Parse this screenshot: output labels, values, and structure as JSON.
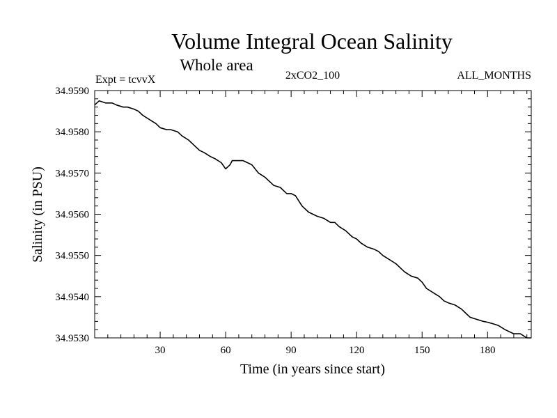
{
  "chart_data": {
    "type": "line",
    "title": "Volume Integral Ocean Salinity",
    "subtitle": "Whole area",
    "annotations": {
      "left": "Expt = tcvvX",
      "center": "2xCO2_100",
      "right": "ALL_MONTHS"
    },
    "xlabel": "Time (in years since start)",
    "ylabel": "Salinity (in PSU)",
    "xlim": [
      0,
      200
    ],
    "ylim": [
      34.953,
      34.959
    ],
    "xticks": [
      30,
      60,
      90,
      120,
      150,
      180
    ],
    "yticks": [
      "34.9530",
      "34.9540",
      "34.9550",
      "34.9560",
      "34.9570",
      "34.9580",
      "34.9590"
    ],
    "grid": false,
    "series": [
      {
        "color": "#000000",
        "x": [
          0,
          2,
          5,
          8,
          10,
          13,
          15,
          18,
          20,
          22,
          25,
          28,
          30,
          33,
          35,
          38,
          40,
          43,
          45,
          48,
          50,
          53,
          55,
          58,
          60,
          62,
          63,
          65,
          68,
          70,
          72,
          75,
          78,
          80,
          82,
          85,
          88,
          90,
          92,
          95,
          98,
          100,
          102,
          105,
          108,
          110,
          112,
          115,
          118,
          120,
          122,
          125,
          128,
          130,
          132,
          135,
          138,
          140,
          142,
          145,
          148,
          150,
          152,
          155,
          158,
          160,
          162,
          165,
          168,
          170,
          172,
          175,
          178,
          180,
          182,
          185,
          188,
          190,
          192,
          195,
          198,
          200
        ],
        "values": [
          34.95865,
          34.95875,
          34.9587,
          34.9587,
          34.95865,
          34.9586,
          34.9586,
          34.95855,
          34.9585,
          34.9584,
          34.9583,
          34.9582,
          34.9581,
          34.95805,
          34.95805,
          34.958,
          34.9579,
          34.9578,
          34.9577,
          34.95755,
          34.9575,
          34.9574,
          34.95735,
          34.95725,
          34.9571,
          34.9572,
          34.9573,
          34.9573,
          34.9573,
          34.95725,
          34.9572,
          34.957,
          34.9569,
          34.9568,
          34.9567,
          34.95665,
          34.9565,
          34.9565,
          34.95645,
          34.9562,
          34.95605,
          34.956,
          34.95595,
          34.9559,
          34.9558,
          34.9558,
          34.9557,
          34.9556,
          34.95545,
          34.9554,
          34.9553,
          34.9552,
          34.95515,
          34.9551,
          34.955,
          34.9549,
          34.9548,
          34.9547,
          34.9546,
          34.9545,
          34.95445,
          34.95435,
          34.9542,
          34.9541,
          34.954,
          34.9539,
          34.95385,
          34.9538,
          34.9537,
          34.9536,
          34.9535,
          34.95345,
          34.9534,
          34.95338,
          34.95335,
          34.9533,
          34.9532,
          34.95315,
          34.9531,
          34.9531,
          34.953,
          34.953
        ]
      }
    ]
  }
}
